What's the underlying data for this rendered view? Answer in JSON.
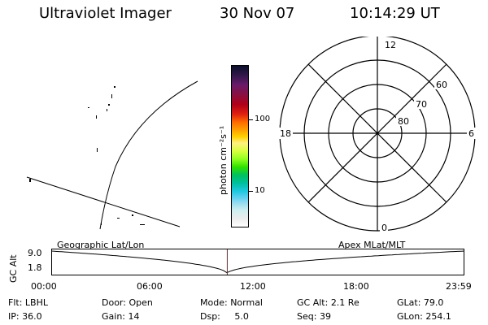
{
  "header": {
    "instrument": "Ultraviolet Imager",
    "date": "30 Nov 07",
    "time": "10:14:29 UT"
  },
  "colorbar": {
    "unit_label": "photon cm⁻²s⁻¹",
    "ticks": [
      "100",
      "10"
    ]
  },
  "polar": {
    "mlt_labels": [
      "12",
      "18",
      "6",
      "0"
    ],
    "lat_labels": [
      "60",
      "70",
      "80"
    ]
  },
  "timeline": {
    "left_label": "Geographic Lat/Lon",
    "right_label": "Apex MLat/MLT",
    "y_axis_label": "GC Alt",
    "y_ticks": [
      "9.0",
      "1.8"
    ],
    "x_ticks": [
      "00:00",
      "06:00",
      "12:00",
      "18:00",
      "23:59"
    ],
    "current_time_fraction": 0.426
  },
  "status": {
    "row1": [
      {
        "label": "Flt:",
        "value": "LBHL"
      },
      {
        "label": "Door:",
        "value": "Open"
      },
      {
        "label": "Mode:",
        "value": "Normal"
      },
      {
        "label": "GC Alt:",
        "value": "2.1 Re"
      },
      {
        "label": "GLat:",
        "value": "79.0"
      }
    ],
    "row2": [
      {
        "label": "IP:",
        "value": "36.0"
      },
      {
        "label": "Gain:",
        "value": "14"
      },
      {
        "label": "Dsp:",
        "value": "5.0"
      },
      {
        "label": "Seq:",
        "value": "39"
      },
      {
        "label": "GLon:",
        "value": "254.1"
      }
    ]
  },
  "colors": {
    "marker": "#cc0000",
    "line": "#000000",
    "background": "#ffffff"
  }
}
